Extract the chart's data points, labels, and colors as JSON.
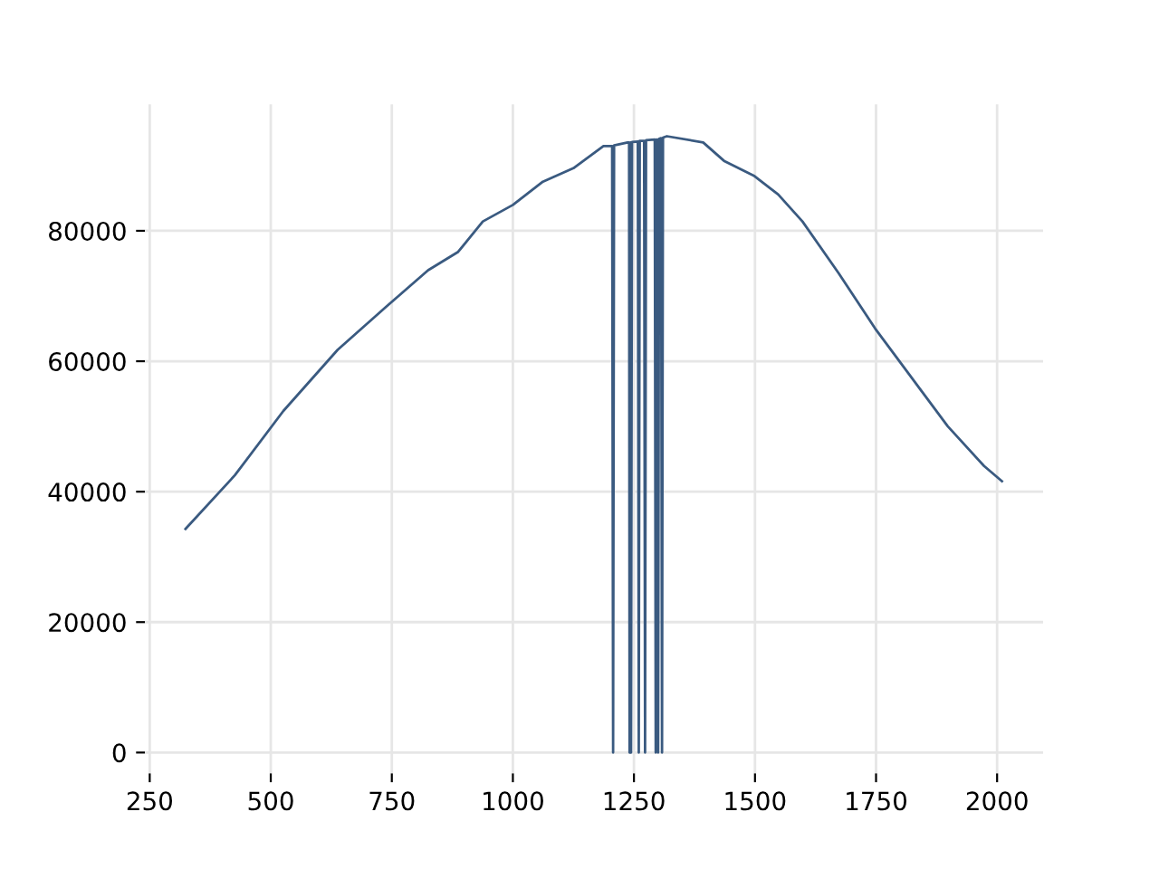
{
  "chart_data": {
    "type": "line",
    "grid": true,
    "xlim": [
      240,
      2095
    ],
    "ylim": [
      -3200,
      99400
    ],
    "xticks": [
      250,
      500,
      750,
      1000,
      1250,
      1500,
      1750,
      2000
    ],
    "yticks": [
      0,
      20000,
      40000,
      60000,
      80000
    ],
    "series": [
      {
        "color": "#3a5a80",
        "x": [
          324,
          426,
          526,
          638,
          738,
          825,
          887,
          938,
          1000,
          1062,
          1125,
          1187,
          1205,
          1207,
          1209,
          1237,
          1240,
          1241,
          1243,
          1244,
          1246,
          1258,
          1260,
          1262,
          1271,
          1273,
          1275,
          1293,
          1295,
          1297,
          1298,
          1300,
          1302,
          1306,
          1308,
          1310,
          1318,
          1393,
          1436,
          1499,
          1548,
          1598,
          1673,
          1748,
          1823,
          1898,
          1973,
          2010
        ],
        "values": [
          34290,
          42530,
          52380,
          61750,
          68330,
          73950,
          76770,
          81440,
          83970,
          87540,
          89600,
          92980,
          93000,
          0,
          93100,
          93550,
          93550,
          0,
          93550,
          0,
          93600,
          93700,
          0,
          93800,
          93800,
          0,
          93900,
          94000,
          0,
          94000,
          94000,
          0,
          94100,
          94200,
          0,
          94300,
          94500,
          93550,
          90730,
          88380,
          85570,
          81440,
          73470,
          65030,
          57520,
          50040,
          43940,
          41600
        ]
      }
    ]
  }
}
